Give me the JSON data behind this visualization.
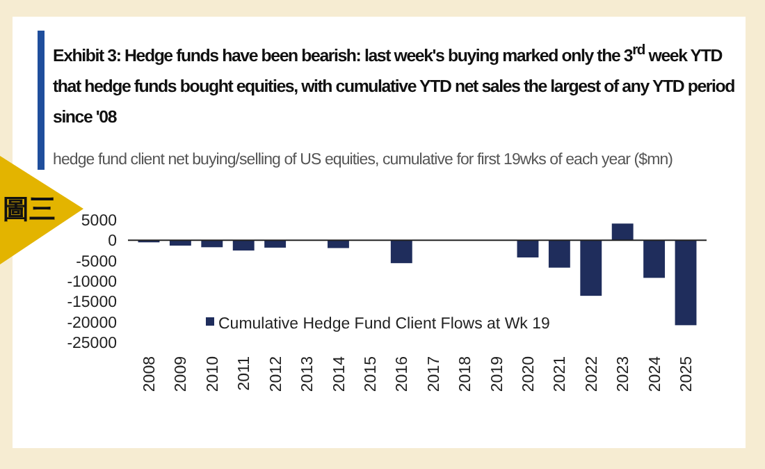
{
  "chart_data": {
    "type": "bar",
    "title": "Exhibit 3: Hedge funds have been bearish: last week's buying marked only the 3$^{rd}$ week YTD that hedge funds bought equities, with cumulative YTD net sales the largest of any YTD period since '08",
    "subtitle": "hedge fund client net buying/selling of US equities, cumulative for first 19wks of each year ($mn)",
    "annotations": [
      "圖三"
    ],
    "categories": [
      "2008",
      "2009",
      "2010",
      "2011",
      "2012",
      "2013",
      "2014",
      "2015",
      "2016",
      "2017",
      "2018",
      "2019",
      "2020",
      "2021",
      "2022",
      "2023",
      "2024",
      "2025"
    ],
    "series": [
      {
        "name": "Cumulative Hedge Fund Client Flows at Wk 19",
        "color": "#1f2d5c",
        "values": [
          -500,
          -1300,
          -1700,
          -2500,
          -1800,
          0,
          -1900,
          0,
          -5600,
          0,
          0,
          0,
          -4200,
          -6700,
          -13600,
          4100,
          -9200,
          -20800
        ]
      }
    ],
    "ylim": [
      -25000,
      5000
    ],
    "yticks": [
      5000,
      0,
      -5000,
      -10000,
      -15000,
      -20000,
      -25000
    ],
    "legend": "bottom left"
  }
}
